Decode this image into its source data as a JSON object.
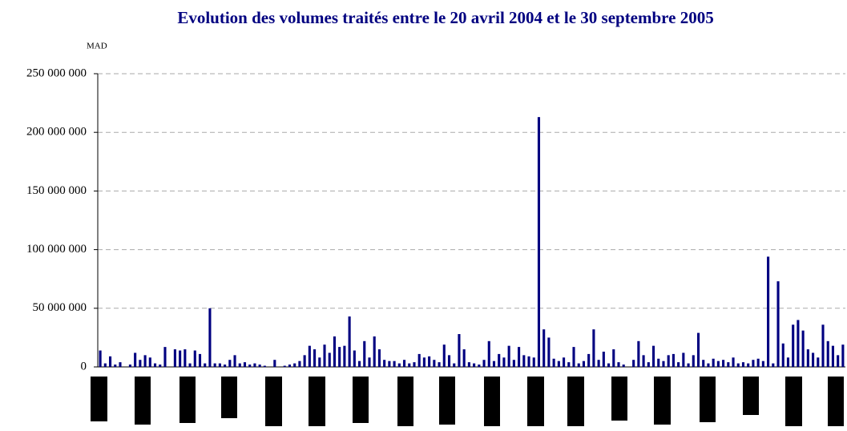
{
  "chart_data": {
    "type": "bar",
    "title": "Evolution des volumes traités entre le 20 avril 2004 et le 30 septembre 2005",
    "y_label": "MAD",
    "color": "#000080",
    "grid": true,
    "ylim": [
      0,
      250000000
    ],
    "yticks": [
      0,
      {
        "value": 50000000,
        "label": "50 000 000"
      },
      {
        "value": 100000000,
        "label": "100 000 000"
      },
      {
        "value": 150000000,
        "label": "150 000 000"
      },
      {
        "value": 200000000,
        "label": "200 000 000"
      },
      {
        "value": 250000000,
        "label": "250 000 000"
      }
    ],
    "values": [
      14000000,
      3000000,
      9000000,
      2000000,
      4000000,
      0,
      2000000,
      12000000,
      6000000,
      10000000,
      8000000,
      3000000,
      2000000,
      17000000,
      0,
      15000000,
      14000000,
      15000000,
      3000000,
      14000000,
      11000000,
      3000000,
      50000000,
      3000000,
      3000000,
      2000000,
      6000000,
      10000000,
      3000000,
      4000000,
      2000000,
      3000000,
      2000000,
      1000000,
      0,
      6000000,
      0,
      1000000,
      2000000,
      3000000,
      5000000,
      10000000,
      18000000,
      15000000,
      8000000,
      19000000,
      12000000,
      26000000,
      17000000,
      18000000,
      43000000,
      14000000,
      5000000,
      22000000,
      8000000,
      26000000,
      15000000,
      6000000,
      5000000,
      5000000,
      3000000,
      6000000,
      3000000,
      4000000,
      11000000,
      8000000,
      9000000,
      6000000,
      4000000,
      19000000,
      10000000,
      3000000,
      28000000,
      15000000,
      4000000,
      3000000,
      2000000,
      6000000,
      22000000,
      5000000,
      11000000,
      8000000,
      18000000,
      6000000,
      17000000,
      10000000,
      9000000,
      8000000,
      213000000,
      32000000,
      25000000,
      7000000,
      5000000,
      8000000,
      4000000,
      17000000,
      3000000,
      5000000,
      11000000,
      32000000,
      6000000,
      13000000,
      3000000,
      15000000,
      4000000,
      2000000,
      0,
      6000000,
      22000000,
      10000000,
      4000000,
      18000000,
      7000000,
      5000000,
      10000000,
      11000000,
      4000000,
      12000000,
      3000000,
      10000000,
      29000000,
      6000000,
      3000000,
      7000000,
      5000000,
      6000000,
      4000000,
      8000000,
      3000000,
      4000000,
      3000000,
      6000000,
      7000000,
      5000000,
      94000000,
      3000000,
      73000000,
      20000000,
      8000000,
      36000000,
      40000000,
      31000000,
      15000000,
      12000000,
      8000000,
      36000000,
      22000000,
      18000000,
      10000000,
      19000000
    ]
  }
}
